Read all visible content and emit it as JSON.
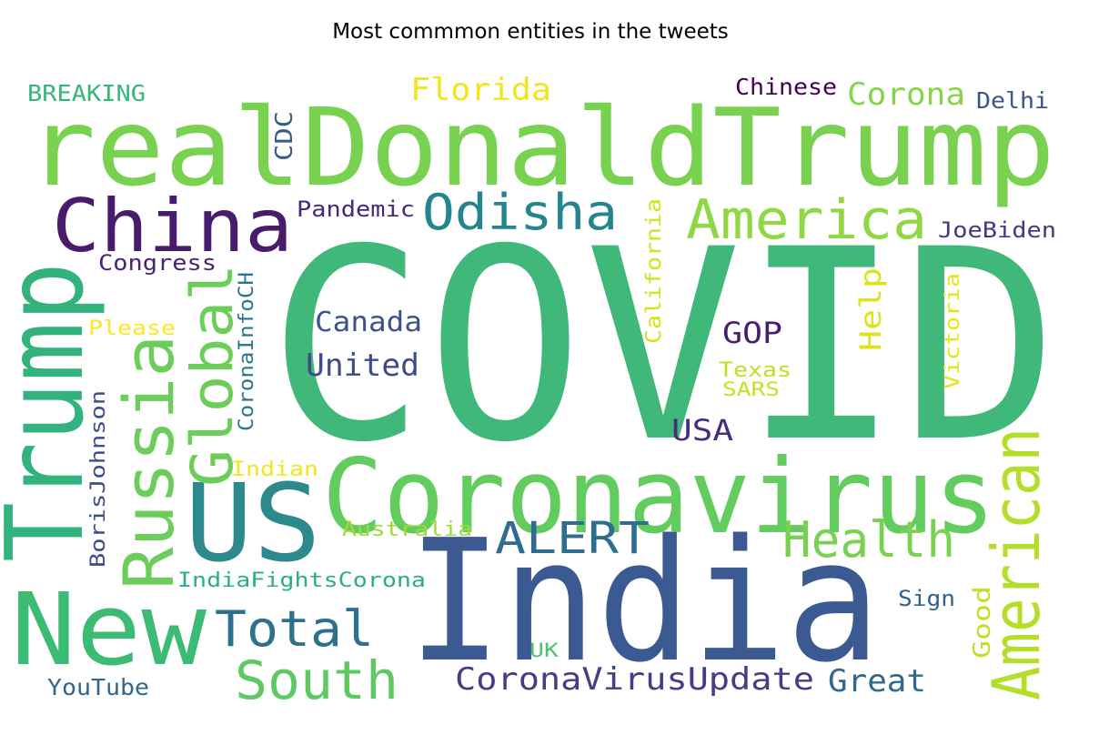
{
  "title": "Most commmon entities in the tweets",
  "chart_data": {
    "type": "wordcloud",
    "title": "Most commmon entities in the tweets",
    "words": [
      {
        "text": "COVID",
        "weight": 1.0,
        "color": "#3fb87a"
      },
      {
        "text": "realDonaldTrump",
        "weight": 0.5,
        "color": "#78d24f"
      },
      {
        "text": "India",
        "weight": 0.76,
        "color": "#3b5a92"
      },
      {
        "text": "Coronavirus",
        "weight": 0.49,
        "color": "#62cc5e"
      },
      {
        "text": "Trump",
        "weight": 0.47,
        "color": "#32b37e"
      },
      {
        "text": "US",
        "weight": 0.52,
        "color": "#2c8a8d"
      },
      {
        "text": "New",
        "weight": 0.47,
        "color": "#3cbb75"
      },
      {
        "text": "China",
        "weight": 0.35,
        "color": "#481b6d"
      },
      {
        "text": "Russia",
        "weight": 0.33,
        "color": "#6ccd5a"
      },
      {
        "text": "American",
        "weight": 0.31,
        "color": "#b5de2b"
      },
      {
        "text": "Global",
        "weight": 0.27,
        "color": "#6cce59"
      },
      {
        "text": "America",
        "weight": 0.26,
        "color": "#8fd744"
      },
      {
        "text": "South",
        "weight": 0.25,
        "color": "#5ec962"
      },
      {
        "text": "Odisha",
        "weight": 0.23,
        "color": "#25858e"
      },
      {
        "text": "Total",
        "weight": 0.23,
        "color": "#2d718e"
      },
      {
        "text": "Health",
        "weight": 0.23,
        "color": "#7ad151"
      },
      {
        "text": "ALERT",
        "weight": 0.2,
        "color": "#2f6c8e"
      },
      {
        "text": "Florida",
        "weight": 0.15,
        "color": "#f1e51d"
      },
      {
        "text": "Corona",
        "weight": 0.15,
        "color": "#86d549"
      },
      {
        "text": "Canada",
        "weight": 0.13,
        "color": "#3b528b"
      },
      {
        "text": "United",
        "weight": 0.15,
        "color": "#3e4a89"
      },
      {
        "text": "GOP",
        "weight": 0.14,
        "color": "#481f70"
      },
      {
        "text": "USA",
        "weight": 0.14,
        "color": "#472d7b"
      },
      {
        "text": "CoronaVirusUpdate",
        "weight": 0.15,
        "color": "#433e85"
      },
      {
        "text": "Great",
        "weight": 0.15,
        "color": "#31688e"
      },
      {
        "text": "Help",
        "weight": 0.14,
        "color": "#dde318"
      },
      {
        "text": "Chinese",
        "weight": 0.11,
        "color": "#440154"
      },
      {
        "text": "Delhi",
        "weight": 0.11,
        "color": "#3a548c"
      },
      {
        "text": "BREAKING",
        "weight": 0.11,
        "color": "#35b779"
      },
      {
        "text": "CDC",
        "weight": 0.11,
        "color": "#365c8d"
      },
      {
        "text": "Pandemic",
        "weight": 0.1,
        "color": "#482878"
      },
      {
        "text": "JoeBiden",
        "weight": 0.1,
        "color": "#443a83"
      },
      {
        "text": "Congress",
        "weight": 0.1,
        "color": "#482475"
      },
      {
        "text": "California",
        "weight": 0.1,
        "color": "#d2e21b"
      },
      {
        "text": "Victoria",
        "weight": 0.09,
        "color": "#e7e419"
      },
      {
        "text": "Please",
        "weight": 0.09,
        "color": "#fde725"
      },
      {
        "text": "CoronaInfoCH",
        "weight": 0.09,
        "color": "#2a788e"
      },
      {
        "text": "BorisJohnson",
        "weight": 0.09,
        "color": "#3e4c8a"
      },
      {
        "text": "Texas",
        "weight": 0.09,
        "color": "#bddf26"
      },
      {
        "text": "SARS",
        "weight": 0.09,
        "color": "#c8e020"
      },
      {
        "text": "Indian",
        "weight": 0.09,
        "color": "#f4e61e"
      },
      {
        "text": "Australia",
        "weight": 0.09,
        "color": "#a0da39"
      },
      {
        "text": "IndiaFightsCorona",
        "weight": 0.09,
        "color": "#2ab07f"
      },
      {
        "text": "Good",
        "weight": 0.1,
        "color": "#c0df25"
      },
      {
        "text": "Sign",
        "weight": 0.09,
        "color": "#33638d"
      },
      {
        "text": "UK",
        "weight": 0.08,
        "color": "#4ec36b"
      },
      {
        "text": "YouTube",
        "weight": 0.1,
        "color": "#31668e"
      }
    ]
  }
}
